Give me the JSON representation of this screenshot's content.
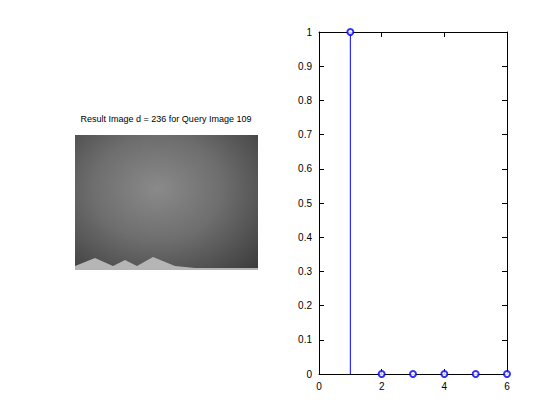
{
  "chart_data": [
    {
      "type": "image",
      "title": "Result Image d = 236 for Query Image 109"
    },
    {
      "type": "stem",
      "x": [
        1,
        2,
        3,
        4,
        5,
        6
      ],
      "values": [
        1,
        0,
        0,
        0,
        0,
        0
      ],
      "color": "#0000ff",
      "marker": "circle",
      "xlim": [
        0,
        6
      ],
      "xticks": [
        0,
        2,
        4,
        6
      ],
      "ylim": [
        0,
        1
      ],
      "yticks": [
        0,
        0.1,
        0.2,
        0.3,
        0.4,
        0.5,
        0.6,
        0.7,
        0.8,
        0.9,
        1
      ],
      "grid": false
    }
  ]
}
